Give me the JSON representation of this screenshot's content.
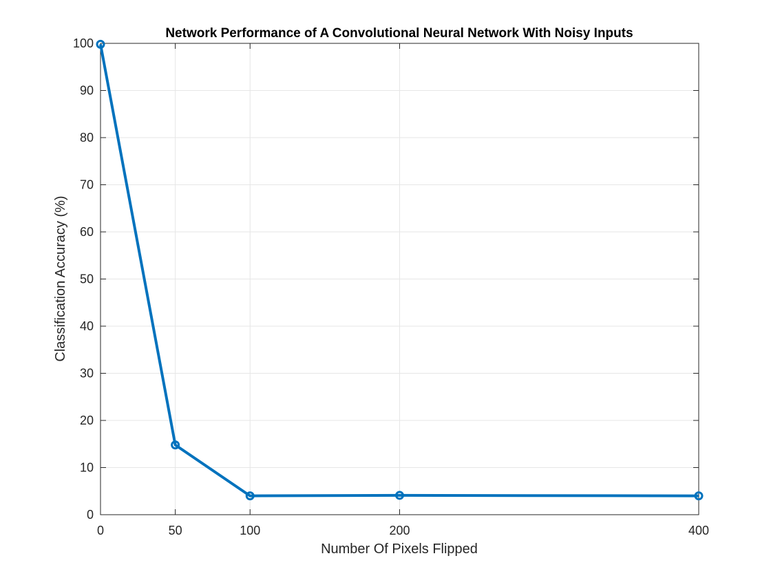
{
  "chart_data": {
    "type": "line",
    "title": "Network Performance of A Convolutional Neural Network With Noisy Inputs",
    "xlabel": "Number Of Pixels Flipped",
    "ylabel": "Classification Accuracy (%)",
    "x_ticks": [
      "0",
      "50",
      "100",
      "200",
      "400"
    ],
    "y_ticks": [
      "0",
      "10",
      "20",
      "30",
      "40",
      "50",
      "60",
      "70",
      "80",
      "90",
      "100"
    ],
    "ylim": [
      0,
      100
    ],
    "grid": true,
    "x_axis_note": "categorical spacing: ticks are evenly spaced by index except positions follow 0,1,2,4,8 units",
    "series": [
      {
        "x": [
          "0",
          "50",
          "100",
          "200",
          "400"
        ],
        "values": [
          99.8,
          14.8,
          4.0,
          4.1,
          4.0
        ],
        "color": "#0072BD",
        "marker": "circle"
      }
    ]
  }
}
